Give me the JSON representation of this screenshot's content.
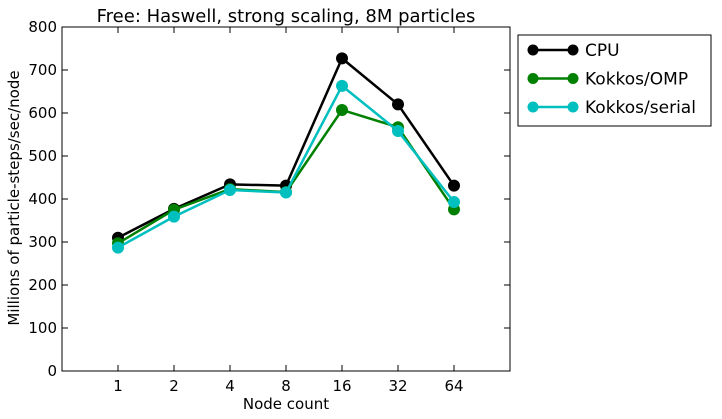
{
  "chart_data": {
    "type": "line",
    "title": "Free: Haswell, strong scaling, 8M particles",
    "xlabel": "Node count",
    "ylabel": "Millions of particle-steps/sec/node",
    "categories": [
      "1",
      "2",
      "4",
      "8",
      "16",
      "32",
      "64"
    ],
    "ylim": [
      0,
      800
    ],
    "yticks": [
      0,
      100,
      200,
      300,
      400,
      500,
      600,
      700,
      800
    ],
    "grid": false,
    "legend_position": "right",
    "series": [
      {
        "name": "CPU",
        "color": "#000000",
        "values": [
          310,
          377,
          434,
          431,
          727,
          620,
          431
        ]
      },
      {
        "name": "Kokkos/OMP",
        "color": "#008000",
        "values": [
          297,
          375,
          423,
          416,
          607,
          567,
          376
        ]
      },
      {
        "name": "Kokkos/serial",
        "color": "#00bfbf",
        "values": [
          287,
          359,
          421,
          415,
          663,
          558,
          393
        ]
      }
    ]
  }
}
